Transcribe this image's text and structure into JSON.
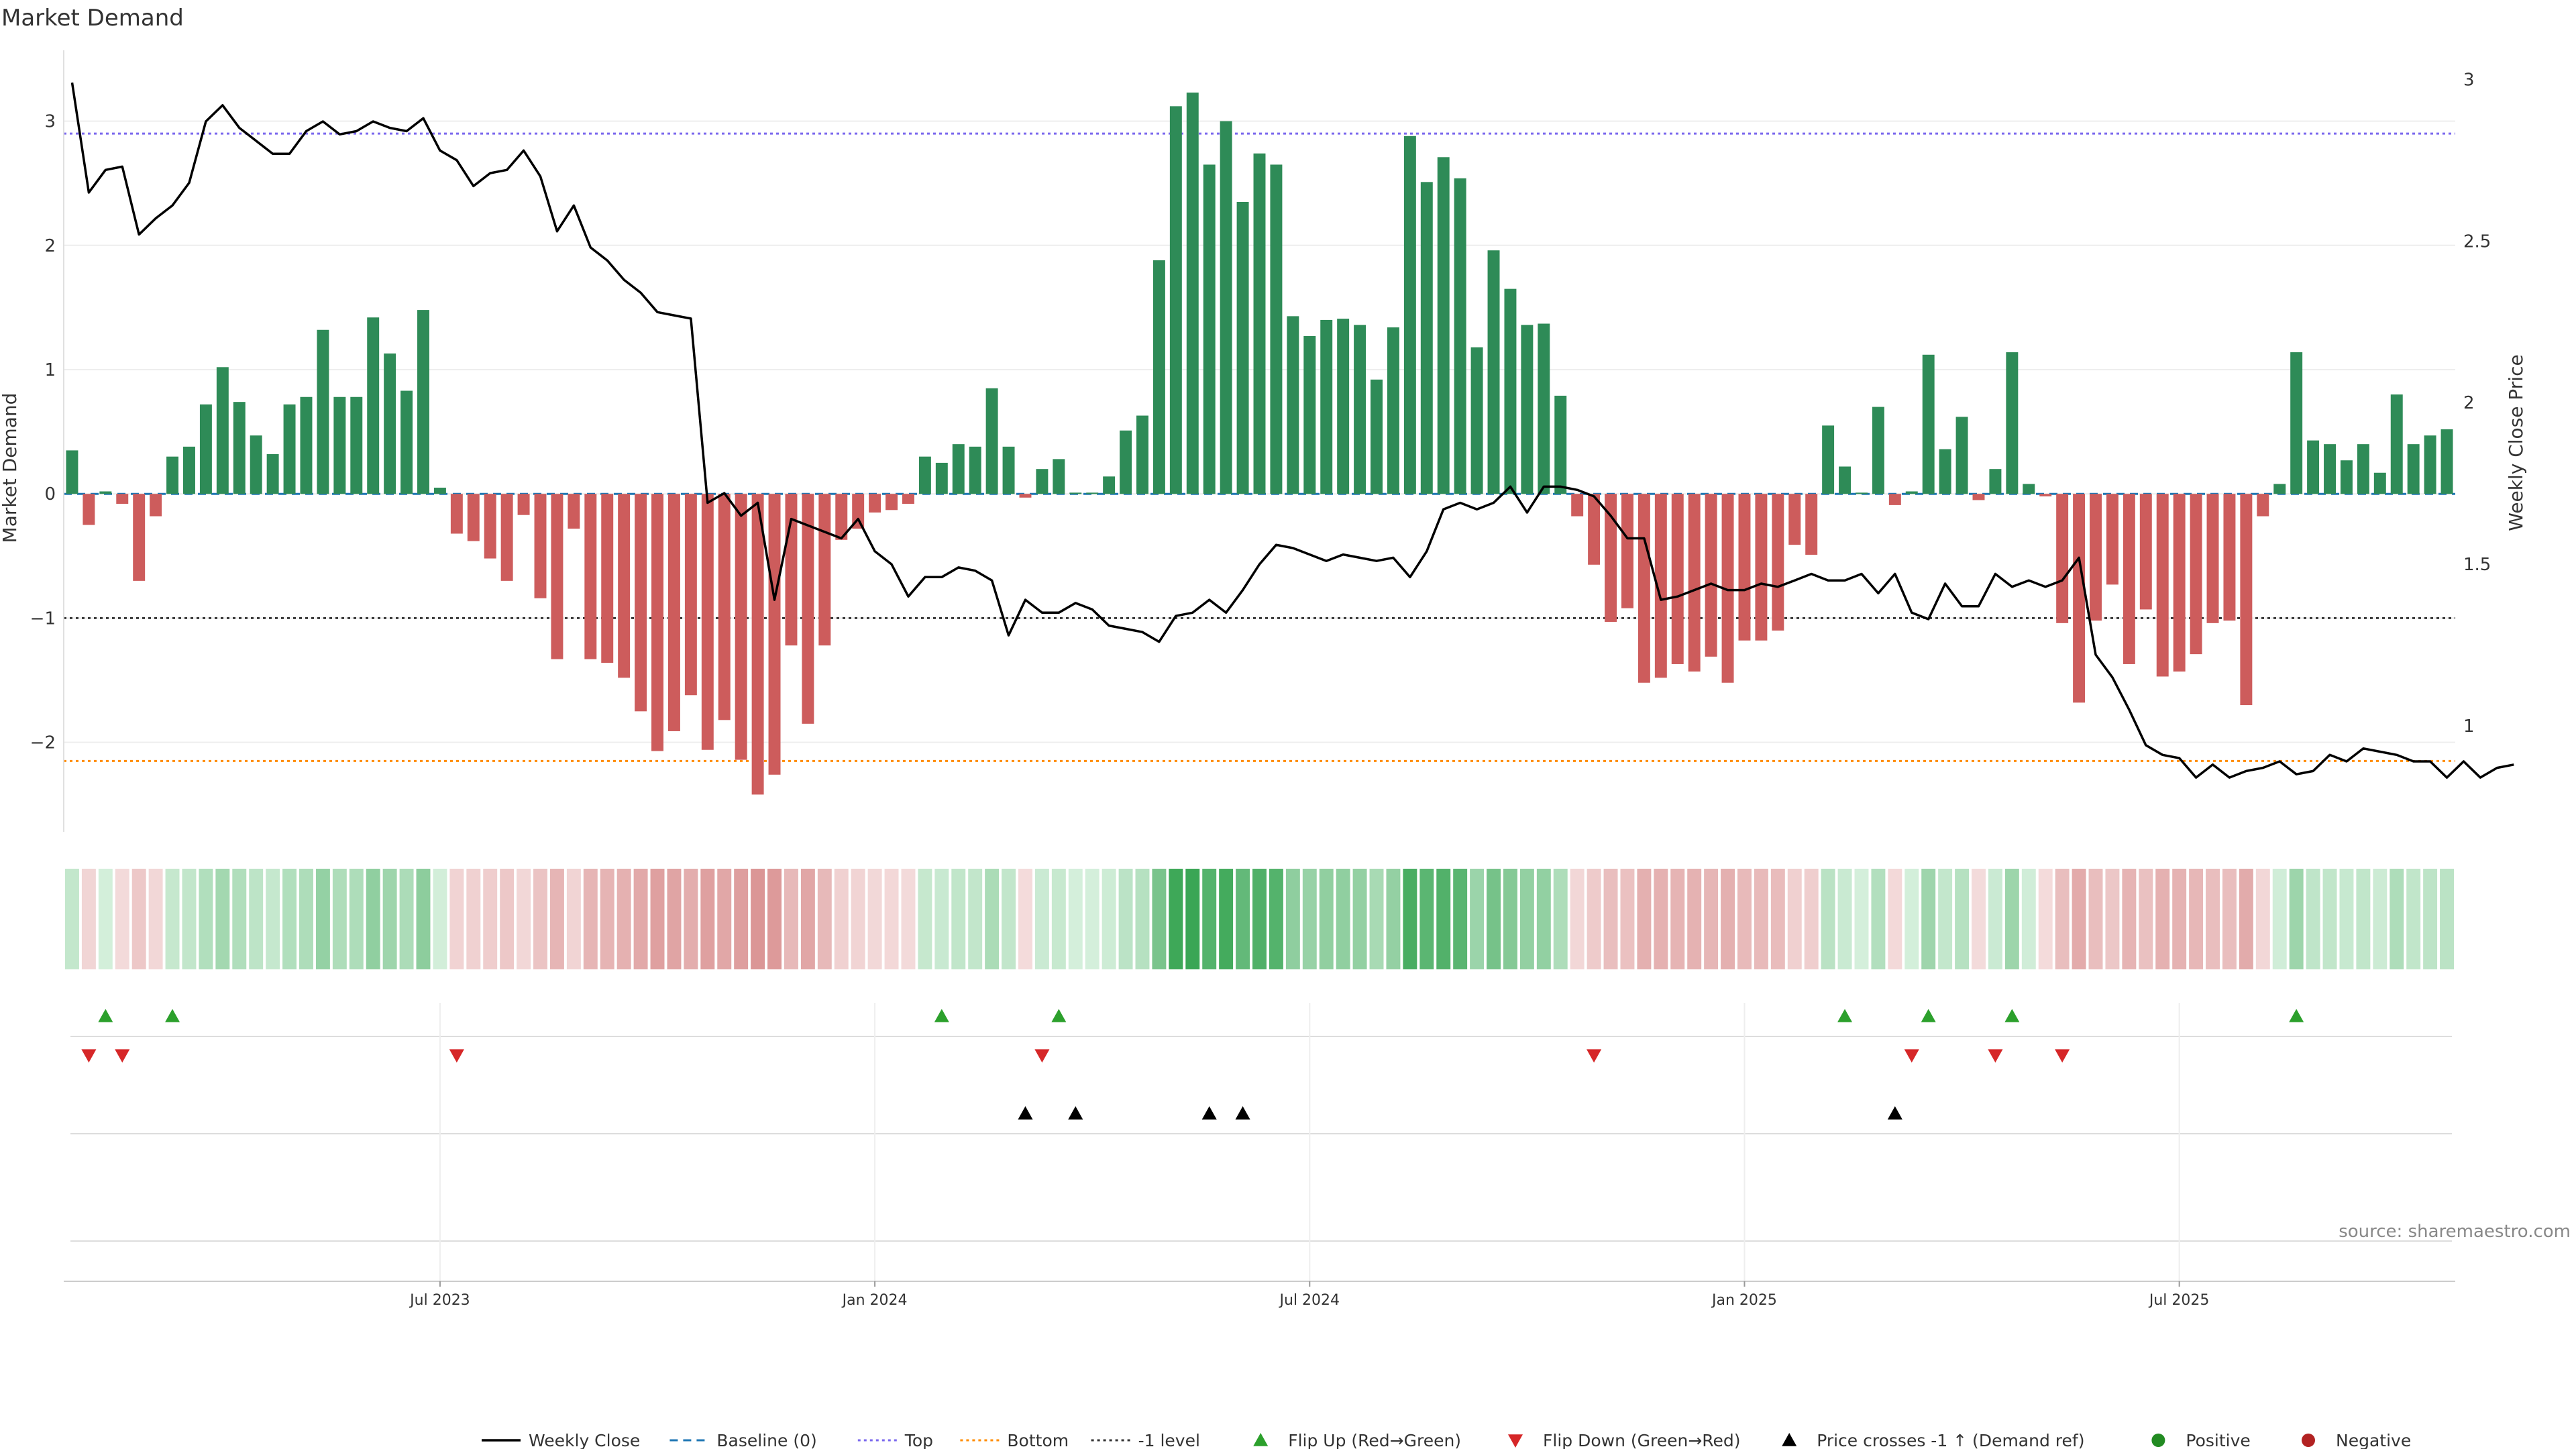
{
  "title": "Market Demand",
  "source": "source: sharemaestro.com",
  "chart_data": {
    "type": "bar",
    "title": "Market Demand",
    "ylabel": "Market Demand",
    "y2label": "Weekly Close Price",
    "ylim": [
      -2.72,
      3.57
    ],
    "y2lim": [
      0.672,
      3.09
    ],
    "yticks": [
      "−2",
      "−1",
      "0",
      "1",
      "2",
      "3"
    ],
    "yticks_values": [
      -2,
      -1,
      0,
      1,
      2,
      3
    ],
    "y2ticks": [
      "1",
      "1.5",
      "2",
      "2.5",
      "3"
    ],
    "y2ticks_values": [
      1,
      1.5,
      2,
      2.5,
      3
    ],
    "xticks": [
      "Jul 2023",
      "Jan 2024",
      "Jul 2024",
      "Jan 2025",
      "Jul 2025"
    ],
    "xticks_index": [
      22,
      48,
      74,
      100,
      126
    ],
    "hlines": {
      "top": 2.9,
      "bottom": -2.15,
      "minus_one": -1,
      "baseline": 0
    },
    "colors": {
      "positive_bar": "#2e8b57",
      "negative_bar": "#cd5c5c",
      "price_line": "#000000",
      "top_line": "#7b68ee",
      "bottom_line": "#ff8c00",
      "minus_one_line": "#333333",
      "flip_up": "#2ca02c",
      "flip_down": "#d62728",
      "cross_marker": "#000000",
      "positive_dot": "#228b22",
      "negative_dot": "#b22222",
      "heat_pos_light": "#d4efdb",
      "heat_pos_dark": "#3aa655",
      "heat_neg_light": "#f4dcdc",
      "heat_neg_dark": "#d37f7f"
    },
    "demand": [
      0.35,
      -0.25,
      0.02,
      -0.08,
      -0.7,
      -0.18,
      0.3,
      0.38,
      0.72,
      1.02,
      0.74,
      0.47,
      0.32,
      0.72,
      0.78,
      1.32,
      0.78,
      0.78,
      1.42,
      1.13,
      0.83,
      1.48,
      0.05,
      -0.32,
      -0.38,
      -0.52,
      -0.7,
      -0.17,
      -0.84,
      -1.33,
      -0.28,
      -1.33,
      -1.36,
      -1.48,
      -1.75,
      -2.07,
      -1.91,
      -1.62,
      -2.06,
      -1.82,
      -2.14,
      -2.42,
      -2.26,
      -1.22,
      -1.85,
      -1.22,
      -0.37,
      -0.28,
      -0.15,
      -0.13,
      -0.08,
      0.3,
      0.25,
      0.4,
      0.38,
      0.85,
      0.38,
      -0.03,
      0.2,
      0.28,
      0.01,
      0.01,
      0.14,
      0.51,
      0.63,
      1.88,
      3.12,
      3.23,
      2.65,
      3.0,
      2.35,
      2.74,
      2.65,
      1.43,
      1.27,
      1.4,
      1.41,
      1.36,
      0.92,
      1.34,
      2.88,
      2.51,
      2.71,
      2.54,
      1.18,
      1.96,
      1.65,
      1.36,
      1.37,
      0.79,
      -0.18,
      -0.57,
      -1.03,
      -0.92,
      -1.52,
      -1.48,
      -1.37,
      -1.43,
      -1.31,
      -1.52,
      -1.18,
      -1.18,
      -1.1,
      -0.41,
      -0.49,
      0.55,
      0.22,
      0.01,
      0.7,
      -0.09,
      0.02,
      1.12,
      0.36,
      0.62,
      -0.05,
      0.2,
      1.14,
      0.08,
      -0.02,
      -1.04,
      -1.68,
      -1.02,
      -0.73,
      -1.37,
      -0.93,
      -1.47,
      -1.43,
      -1.29,
      -1.04,
      -1.02,
      -1.7,
      -0.18,
      0.08,
      1.14,
      0.43,
      0.4,
      0.27,
      0.4,
      0.17,
      0.8,
      0.4,
      0.47,
      0.52
    ],
    "price": [
      2.99,
      2.65,
      2.72,
      2.73,
      2.52,
      2.57,
      2.61,
      2.68,
      2.87,
      2.92,
      2.85,
      2.81,
      2.77,
      2.77,
      2.84,
      2.87,
      2.83,
      2.84,
      2.87,
      2.85,
      2.84,
      2.88,
      2.78,
      2.75,
      2.67,
      2.71,
      2.72,
      2.78,
      2.7,
      2.53,
      2.61,
      2.48,
      2.44,
      2.38,
      2.34,
      2.28,
      2.27,
      2.26,
      1.69,
      1.72,
      1.65,
      1.69,
      1.39,
      1.64,
      1.62,
      1.6,
      1.58,
      1.64,
      1.54,
      1.5,
      1.4,
      1.46,
      1.46,
      1.49,
      1.48,
      1.45,
      1.28,
      1.39,
      1.35,
      1.35,
      1.38,
      1.36,
      1.31,
      1.3,
      1.29,
      1.26,
      1.34,
      1.35,
      1.39,
      1.35,
      1.42,
      1.5,
      1.56,
      1.55,
      1.53,
      1.51,
      1.53,
      1.52,
      1.51,
      1.52,
      1.46,
      1.54,
      1.67,
      1.69,
      1.67,
      1.69,
      1.74,
      1.66,
      1.74,
      1.74,
      1.73,
      1.71,
      1.65,
      1.58,
      1.58,
      1.39,
      1.4,
      1.42,
      1.44,
      1.42,
      1.42,
      1.44,
      1.43,
      1.45,
      1.47,
      1.45,
      1.45,
      1.47,
      1.41,
      1.47,
      1.35,
      1.33,
      1.44,
      1.37,
      1.37,
      1.47,
      1.43,
      1.45,
      1.43,
      1.45,
      1.52,
      1.22,
      1.15,
      1.05,
      0.94,
      0.91,
      0.9,
      0.84,
      0.88,
      0.84,
      0.86,
      0.87,
      0.89,
      0.85,
      0.86,
      0.91,
      0.89,
      0.93,
      0.92,
      0.91,
      0.89,
      0.89,
      0.84,
      0.89,
      0.84,
      0.87,
      0.88
    ],
    "flip_up_index": [
      2,
      6,
      52,
      59,
      106,
      111,
      116,
      133
    ],
    "flip_down_index": [
      1,
      3,
      23,
      58,
      91,
      110,
      115,
      119
    ],
    "cross_index": [
      57,
      60,
      68,
      70,
      109
    ],
    "legend": [
      {
        "label": "Weekly Close",
        "kind": "solid-line"
      },
      {
        "label": "Baseline (0)",
        "kind": "dashed-line"
      },
      {
        "label": "Top",
        "kind": "dotted-top"
      },
      {
        "label": "Bottom",
        "kind": "dotted-bottom"
      },
      {
        "label": "-1 level",
        "kind": "dotted-minus"
      },
      {
        "label": "Flip Up (Red→Green)",
        "kind": "tri-up-green"
      },
      {
        "label": "Flip Down (Green→Red)",
        "kind": "tri-down-red"
      },
      {
        "label": "Price crosses -1 ↑ (Demand ref)",
        "kind": "tri-up-black"
      },
      {
        "label": "Positive",
        "kind": "dot-green"
      },
      {
        "label": "Negative",
        "kind": "dot-red"
      }
    ]
  }
}
